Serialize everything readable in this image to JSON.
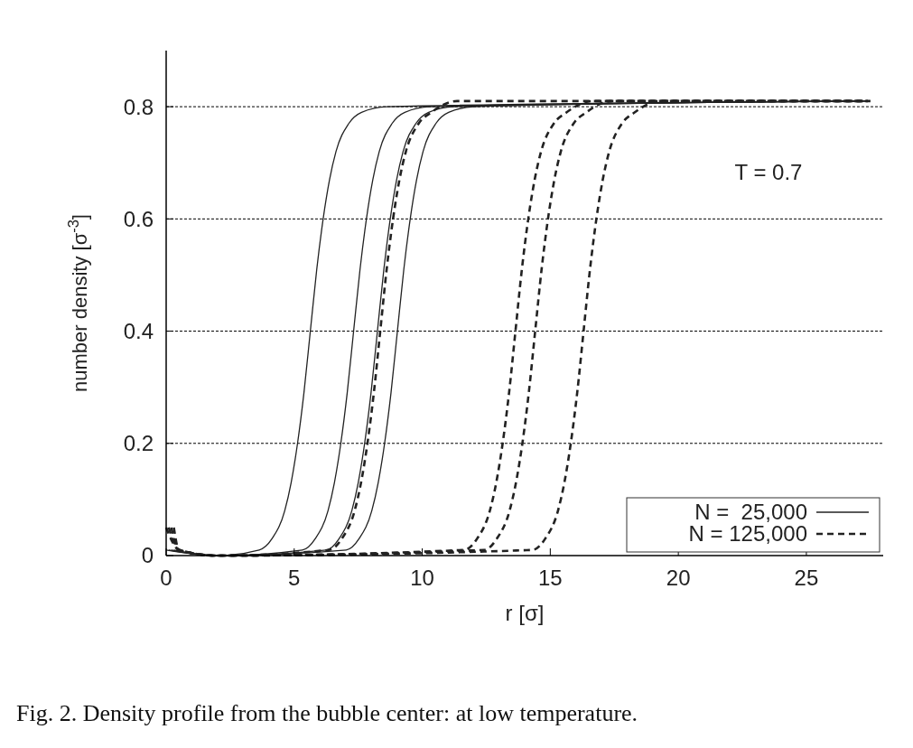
{
  "chart_data": {
    "type": "line",
    "xlabel": "r [σ]",
    "ylabel": "number density [σ$^{-3}$]",
    "annotations": [
      "T = 0.7",
      "Fig. 2. Density profile from the bubble center: at low temperature."
    ],
    "xlim": [
      0,
      28
    ],
    "ylim": [
      0,
      0.9
    ],
    "xticks": [
      0,
      5,
      10,
      15,
      20,
      25
    ],
    "yticks": [
      0,
      0.2,
      0.4,
      0.6,
      0.8
    ],
    "grid": "y",
    "legend": "bottom right",
    "series": [
      {
        "name": "N =  25,000",
        "color": "#222222",
        "line_style": "solid",
        "x": [
          0,
          2,
          3.63,
          4.13,
          4.63,
          4.88,
          5.13,
          5.38,
          5.63,
          5.88,
          6.13,
          6.38,
          6.63,
          7.13,
          7.63,
          8.63,
          27.5
        ],
        "values": [
          0.01,
          0,
          0.01,
          0.03,
          0.08,
          0.13,
          0.2,
          0.29,
          0.4,
          0.51,
          0.6,
          0.67,
          0.72,
          0.77,
          0.79,
          0.8,
          0.81
        ]
      },
      {
        "color": "#222222",
        "line_style": "solid",
        "x": [
          0.1,
          2,
          5.32,
          5.82,
          6.32,
          6.57,
          6.82,
          7.07,
          7.32,
          7.57,
          7.82,
          8.07,
          8.32,
          8.82,
          9.32,
          10.32,
          27.4
        ],
        "values": [
          0.01,
          0,
          0.01,
          0.03,
          0.08,
          0.13,
          0.2,
          0.29,
          0.4,
          0.51,
          0.6,
          0.67,
          0.72,
          0.77,
          0.79,
          0.8,
          0.81
        ]
      },
      {
        "color": "#222222",
        "line_style": "solid",
        "x": [
          0.2,
          2,
          6.25,
          6.75,
          7.25,
          7.5,
          7.75,
          8,
          8.25,
          8.5,
          8.75,
          9,
          9.25,
          9.75,
          10.25,
          11.25,
          27.3
        ],
        "values": [
          0.01,
          0,
          0.01,
          0.03,
          0.08,
          0.13,
          0.2,
          0.29,
          0.4,
          0.51,
          0.6,
          0.67,
          0.72,
          0.77,
          0.79,
          0.8,
          0.81
        ]
      },
      {
        "color": "#222222",
        "line_style": "solid",
        "x": [
          0.3,
          2,
          7.03,
          7.53,
          8.03,
          8.28,
          8.53,
          8.78,
          9.03,
          9.28,
          9.53,
          9.78,
          10.03,
          10.53,
          11.03,
          12.03,
          27.2
        ],
        "values": [
          0.01,
          0,
          0.01,
          0.03,
          0.08,
          0.13,
          0.2,
          0.29,
          0.4,
          0.51,
          0.6,
          0.67,
          0.72,
          0.77,
          0.79,
          0.8,
          0.81
        ]
      },
      {
        "name": "N = 125,000",
        "color": "#222222",
        "line_style": "dashed",
        "x": [
          0,
          0.5,
          2,
          6.36,
          6.86,
          7.36,
          7.61,
          7.86,
          8.11,
          8.36,
          8.61,
          8.86,
          9.11,
          9.36,
          9.86,
          10.36,
          11.36,
          27.5
        ],
        "values": [
          0.05,
          0.01,
          0,
          0.01,
          0.03,
          0.08,
          0.13,
          0.2,
          0.29,
          0.4,
          0.51,
          0.6,
          0.67,
          0.72,
          0.77,
          0.79,
          0.81,
          0.81
        ]
      },
      {
        "color": "#222222",
        "line_style": "dashed",
        "x": [
          0.1,
          0.5,
          2,
          11.64,
          12.14,
          12.64,
          12.89,
          13.14,
          13.39,
          13.64,
          13.89,
          14.14,
          14.39,
          14.64,
          15.14,
          15.64,
          16.64,
          27.4
        ],
        "values": [
          0.05,
          0.01,
          0,
          0.01,
          0.03,
          0.08,
          0.13,
          0.2,
          0.29,
          0.4,
          0.51,
          0.6,
          0.67,
          0.72,
          0.77,
          0.79,
          0.81,
          0.81
        ]
      },
      {
        "color": "#222222",
        "line_style": "dashed",
        "x": [
          0.2,
          0.5,
          2,
          12.41,
          12.91,
          13.41,
          13.66,
          13.91,
          14.16,
          14.41,
          14.66,
          14.91,
          15.16,
          15.41,
          15.91,
          16.41,
          17.41,
          27.3
        ],
        "values": [
          0.05,
          0.01,
          0,
          0.01,
          0.03,
          0.08,
          0.13,
          0.2,
          0.29,
          0.4,
          0.51,
          0.6,
          0.67,
          0.72,
          0.77,
          0.79,
          0.81,
          0.81
        ]
      },
      {
        "color": "#222222",
        "line_style": "dashed",
        "x": [
          0.3,
          0.5,
          2,
          14.3,
          14.8,
          15.3,
          15.55,
          15.8,
          16.05,
          16.3,
          16.55,
          16.8,
          17.05,
          17.3,
          17.8,
          18.3,
          19.3,
          27.2
        ],
        "values": [
          0.05,
          0.01,
          0,
          0.01,
          0.03,
          0.08,
          0.13,
          0.2,
          0.29,
          0.4,
          0.51,
          0.6,
          0.67,
          0.72,
          0.77,
          0.79,
          0.81,
          0.81
        ]
      }
    ]
  }
}
